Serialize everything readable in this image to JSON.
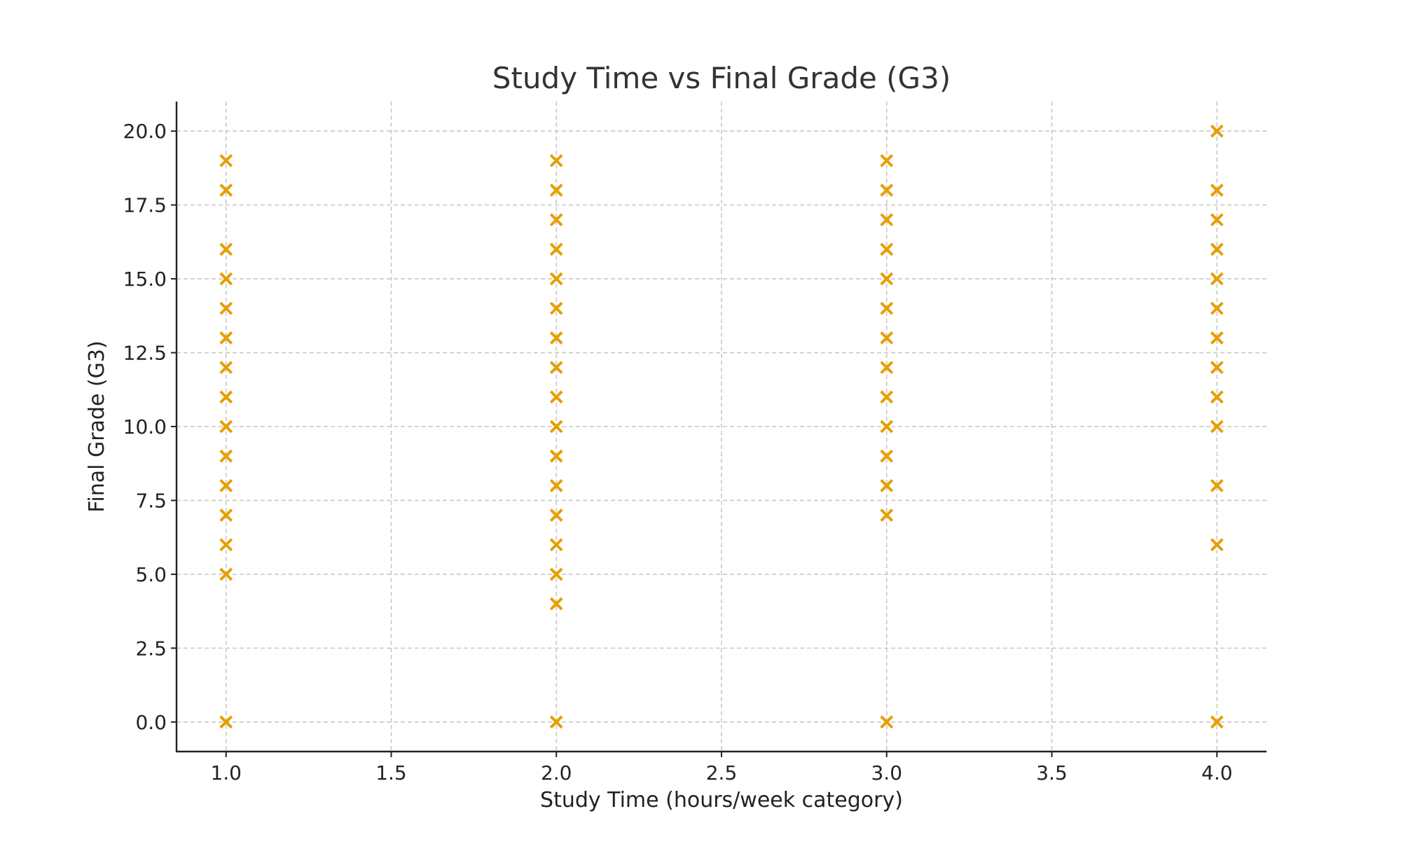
{
  "chart_data": {
    "type": "scatter",
    "title": "Study Time vs Final Grade (G3)",
    "xlabel": "Study Time (hours/week category)",
    "ylabel": "Final Grade (G3)",
    "xlim": [
      0.85,
      4.15
    ],
    "ylim": [
      -1.0,
      21.0
    ],
    "xticks": [
      1.0,
      1.5,
      2.0,
      2.5,
      3.0,
      3.5,
      4.0
    ],
    "xtick_labels": [
      "1.0",
      "1.5",
      "2.0",
      "2.5",
      "3.0",
      "3.5",
      "4.0"
    ],
    "yticks": [
      0.0,
      2.5,
      5.0,
      7.5,
      10.0,
      12.5,
      15.0,
      17.5,
      20.0
    ],
    "ytick_labels": [
      "0.0",
      "2.5",
      "5.0",
      "7.5",
      "10.0",
      "12.5",
      "15.0",
      "17.5",
      "20.0"
    ],
    "grid": true,
    "marker": "x",
    "color": "#E69F00",
    "series": [
      {
        "points": [
          [
            1,
            0
          ],
          [
            1,
            5
          ],
          [
            1,
            6
          ],
          [
            1,
            7
          ],
          [
            1,
            8
          ],
          [
            1,
            9
          ],
          [
            1,
            10
          ],
          [
            1,
            11
          ],
          [
            1,
            12
          ],
          [
            1,
            13
          ],
          [
            1,
            14
          ],
          [
            1,
            15
          ],
          [
            1,
            16
          ],
          [
            1,
            18
          ],
          [
            1,
            19
          ],
          [
            2,
            0
          ],
          [
            2,
            4
          ],
          [
            2,
            5
          ],
          [
            2,
            6
          ],
          [
            2,
            7
          ],
          [
            2,
            8
          ],
          [
            2,
            9
          ],
          [
            2,
            10
          ],
          [
            2,
            11
          ],
          [
            2,
            12
          ],
          [
            2,
            13
          ],
          [
            2,
            14
          ],
          [
            2,
            15
          ],
          [
            2,
            16
          ],
          [
            2,
            17
          ],
          [
            2,
            18
          ],
          [
            2,
            19
          ],
          [
            3,
            0
          ],
          [
            3,
            7
          ],
          [
            3,
            8
          ],
          [
            3,
            9
          ],
          [
            3,
            10
          ],
          [
            3,
            11
          ],
          [
            3,
            12
          ],
          [
            3,
            13
          ],
          [
            3,
            14
          ],
          [
            3,
            15
          ],
          [
            3,
            16
          ],
          [
            3,
            17
          ],
          [
            3,
            18
          ],
          [
            3,
            19
          ],
          [
            4,
            0
          ],
          [
            4,
            6
          ],
          [
            4,
            8
          ],
          [
            4,
            10
          ],
          [
            4,
            11
          ],
          [
            4,
            12
          ],
          [
            4,
            13
          ],
          [
            4,
            14
          ],
          [
            4,
            15
          ],
          [
            4,
            16
          ],
          [
            4,
            17
          ],
          [
            4,
            18
          ],
          [
            4,
            20
          ]
        ]
      }
    ]
  }
}
